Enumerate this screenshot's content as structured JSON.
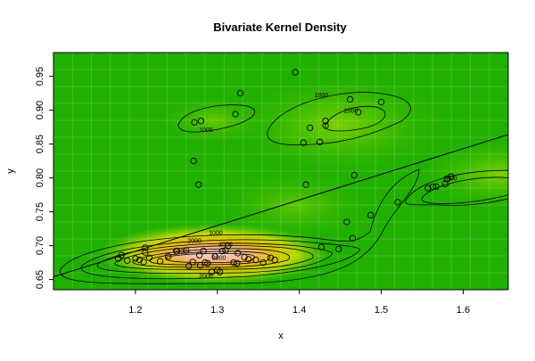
{
  "chart_data": {
    "type": "scatter",
    "title": "Bivariate Kernel Density",
    "xlabel": "x",
    "ylabel": "y",
    "xlim": [
      1.1,
      1.655
    ],
    "ylim": [
      0.635,
      0.985
    ],
    "x_ticks": [
      1.2,
      1.3,
      1.4,
      1.5,
      1.6
    ],
    "y_ticks": [
      0.65,
      0.7,
      0.75,
      0.8,
      0.85,
      0.9,
      0.95
    ],
    "x_tick_labels": [
      "1.2",
      "1.3",
      "1.4",
      "1.5",
      "1.6"
    ],
    "y_tick_labels": [
      "0.65",
      "0.70",
      "0.75",
      "0.80",
      "0.85",
      "0.90",
      "0.95"
    ],
    "grid": true,
    "colors": {
      "background_low": "#20b000",
      "background_mid": "#6ccc00",
      "peak_high": "#f4c6a8",
      "point_stroke": "#000000",
      "regression_line": "#000000"
    },
    "points": [
      [
        1.179,
        0.681
      ],
      [
        1.183,
        0.686
      ],
      [
        1.19,
        0.678
      ],
      [
        1.2,
        0.681
      ],
      [
        1.205,
        0.679
      ],
      [
        1.21,
        0.676
      ],
      [
        1.212,
        0.69
      ],
      [
        1.212,
        0.697
      ],
      [
        1.217,
        0.682
      ],
      [
        1.23,
        0.677
      ],
      [
        1.24,
        0.684
      ],
      [
        1.25,
        0.692
      ],
      [
        1.262,
        0.693
      ],
      [
        1.265,
        0.67
      ],
      [
        1.27,
        0.676
      ],
      [
        1.271,
        0.825
      ],
      [
        1.272,
        0.882
      ],
      [
        1.277,
        0.79
      ],
      [
        1.278,
        0.686
      ],
      [
        1.279,
        0.671
      ],
      [
        1.28,
        0.884
      ],
      [
        1.283,
        0.692
      ],
      [
        1.285,
        0.675
      ],
      [
        1.288,
        0.674
      ],
      [
        1.293,
        0.661
      ],
      [
        1.297,
        0.684
      ],
      [
        1.3,
        0.664
      ],
      [
        1.303,
        0.661
      ],
      [
        1.306,
        0.692
      ],
      [
        1.31,
        0.693
      ],
      [
        1.313,
        0.7
      ],
      [
        1.32,
        0.675
      ],
      [
        1.322,
        0.894
      ],
      [
        1.324,
        0.674
      ],
      [
        1.325,
        0.689
      ],
      [
        1.328,
        0.925
      ],
      [
        1.333,
        0.683
      ],
      [
        1.338,
        0.68
      ],
      [
        1.347,
        0.679
      ],
      [
        1.356,
        0.675
      ],
      [
        1.365,
        0.682
      ],
      [
        1.37,
        0.679
      ],
      [
        1.395,
        0.956
      ],
      [
        1.405,
        0.852
      ],
      [
        1.408,
        0.79
      ],
      [
        1.413,
        0.874
      ],
      [
        1.425,
        0.853
      ],
      [
        1.427,
        0.698
      ],
      [
        1.432,
        0.877
      ],
      [
        1.432,
        0.884
      ],
      [
        1.448,
        0.695
      ],
      [
        1.458,
        0.735
      ],
      [
        1.462,
        0.916
      ],
      [
        1.465,
        0.711
      ],
      [
        1.467,
        0.804
      ],
      [
        1.472,
        0.897
      ],
      [
        1.487,
        0.745
      ],
      [
        1.5,
        0.912
      ],
      [
        1.52,
        0.764
      ],
      [
        1.557,
        0.785
      ],
      [
        1.563,
        0.787
      ],
      [
        1.567,
        0.787
      ],
      [
        1.578,
        0.791
      ],
      [
        1.581,
        0.799
      ],
      [
        1.585,
        0.802
      ]
    ],
    "regression_line": {
      "x": [
        1.1,
        1.655
      ],
      "y": [
        0.654,
        0.864
      ]
    },
    "contour_labels": [
      {
        "text": "1000",
        "x": 1.427,
        "y": 0.923
      },
      {
        "text": "2000",
        "x": 1.463,
        "y": 0.9
      },
      {
        "text": "1000",
        "x": 1.286,
        "y": 0.872
      },
      {
        "text": "1000",
        "x": 1.298,
        "y": 0.72
      },
      {
        "text": "2000",
        "x": 1.272,
        "y": 0.708
      },
      {
        "text": "4000",
        "x": 1.31,
        "y": 0.703
      },
      {
        "text": "6000",
        "x": 1.255,
        "y": 0.693
      },
      {
        "text": "8000",
        "x": 1.302,
        "y": 0.683
      },
      {
        "text": "2000",
        "x": 1.286,
        "y": 0.656
      },
      {
        "text": "2000",
        "x": 1.584,
        "y": 0.8
      }
    ]
  }
}
